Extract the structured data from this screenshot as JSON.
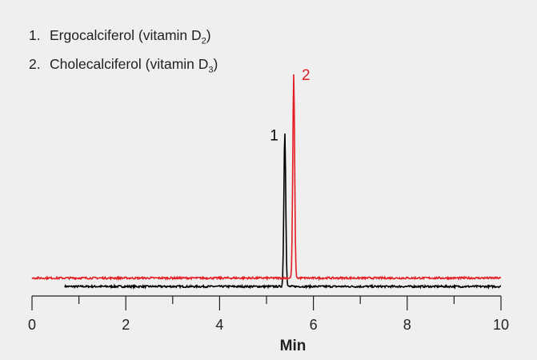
{
  "chart_data": {
    "type": "line",
    "title": "",
    "xlabel": "Min",
    "ylabel": "",
    "xlim": [
      0,
      10
    ],
    "ylim": [
      -4.5,
      100
    ],
    "x_ticks": [
      0,
      1,
      2,
      3,
      4,
      5,
      6,
      7,
      8,
      9,
      10
    ],
    "x_tick_labels": [
      "0",
      "2",
      "4",
      "6",
      "8",
      "10"
    ],
    "grid": false,
    "legend": [
      {
        "number": "1.",
        "text": "Ergocalciferol (vitamin D",
        "sub": "2",
        "close": ")"
      },
      {
        "number": "2.",
        "text": "Cholecalciferol (vitamin D",
        "sub": "3",
        "close": ")"
      }
    ],
    "series": [
      {
        "name": "1",
        "color": "#000000",
        "baseline": 0,
        "peak_time": 5.39,
        "peak_height": 73,
        "trace_start": 0.7
      },
      {
        "name": "2",
        "color": "#e31e24",
        "baseline": 4,
        "peak_time": 5.58,
        "peak_height": 96,
        "trace_start": 0
      }
    ]
  }
}
